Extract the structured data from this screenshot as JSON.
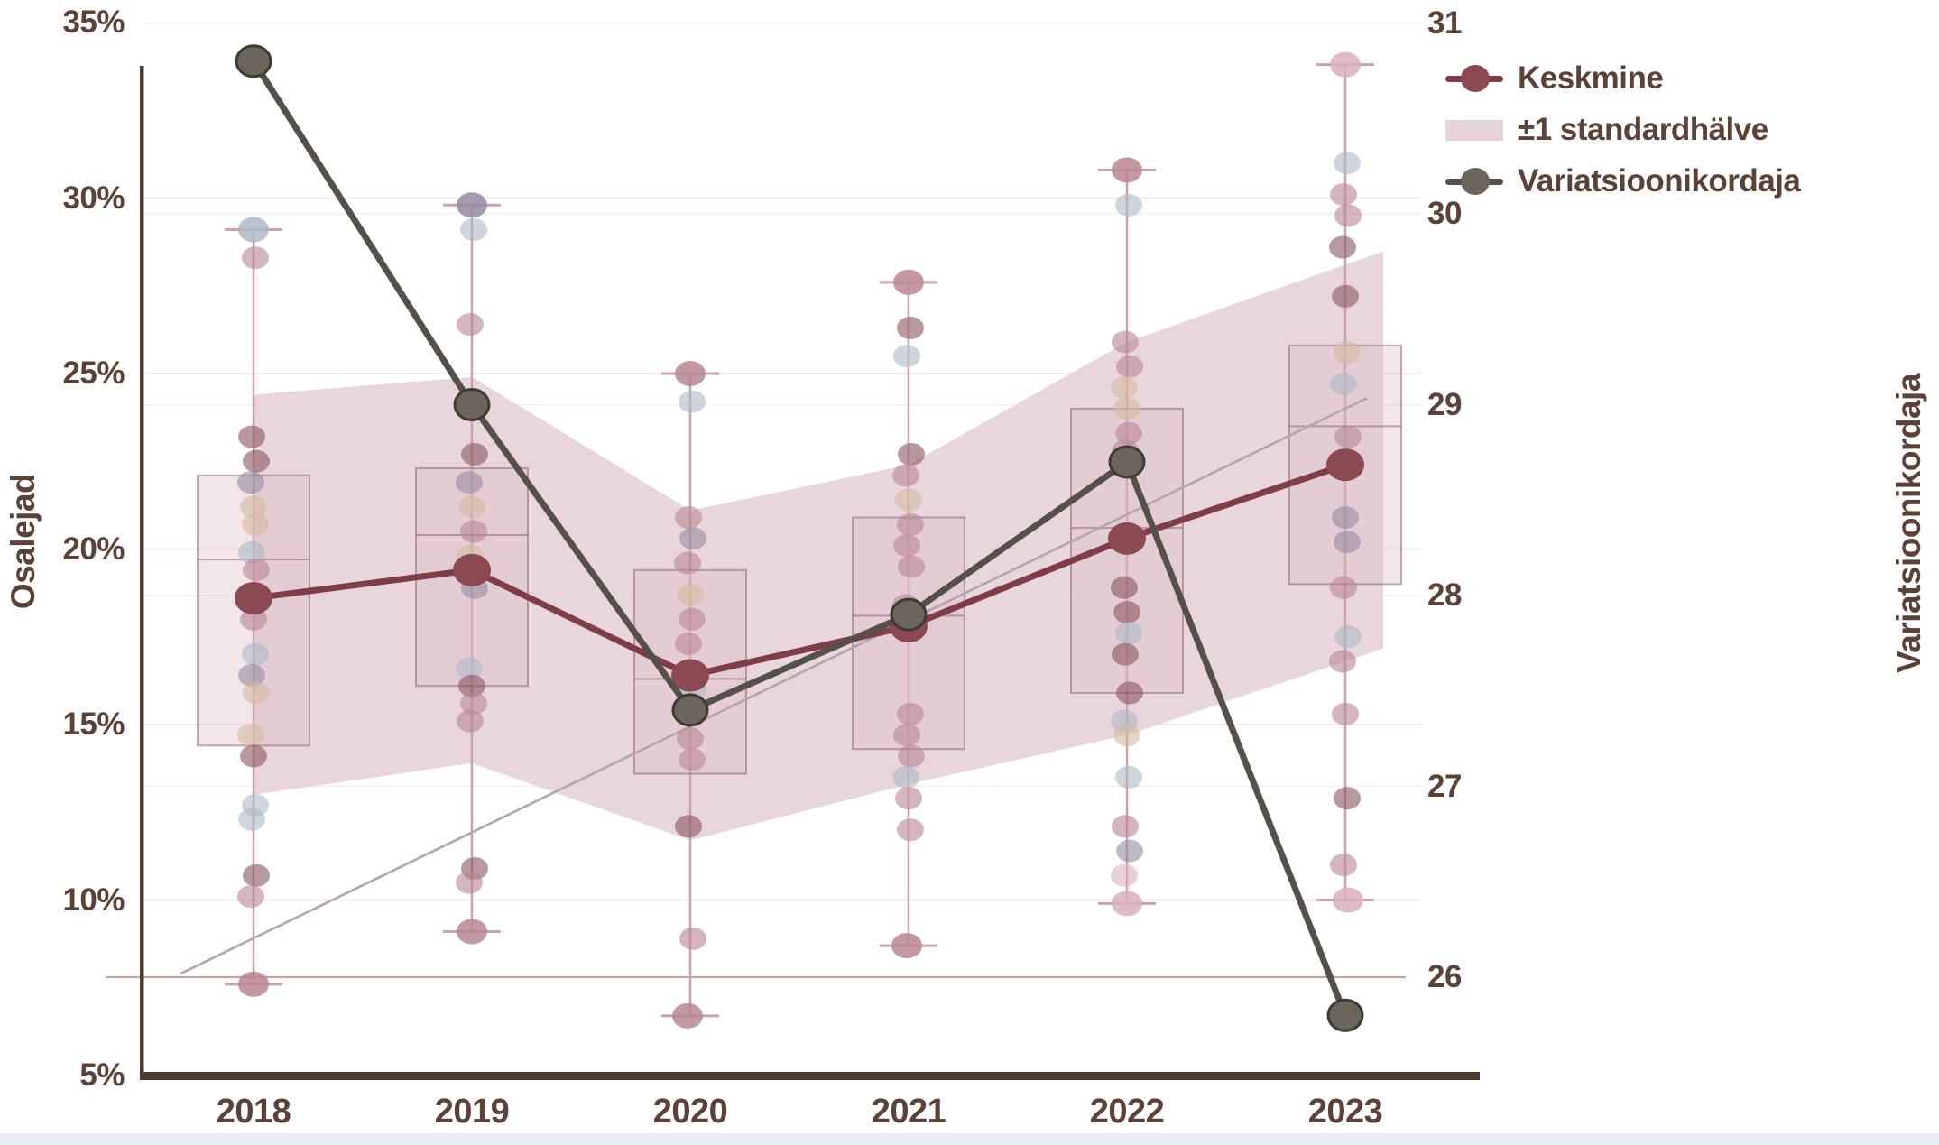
{
  "colors": {
    "text": "#5c4137",
    "axis_line": "#503b32",
    "mean_line": "#7f3e47",
    "mean_dot": "#8b4952",
    "cv_line": "#55504a",
    "cv_dot": "#6b655b",
    "cv_dot_ring": "#3e3a34",
    "band_fill": "#e7d2d9",
    "box_fill": "rgba(222,190,199,0.38)",
    "box_stroke": "rgba(130,90,100,0.5)",
    "whisker": "#c9a2ad",
    "trend_line": "#b3a4ad",
    "grid_left": "#f3e7ea",
    "grid_right": "#ece7e8",
    "grid_26": "#c5a49b",
    "bottom_strip": "#eaedf2",
    "dot_palette": {
      "rose": "#b98692",
      "maroon": "#8a5560",
      "blue": "#aeb9c6",
      "tan": "#d2bb9e",
      "purple": "#968aa0",
      "pink": "#d9afbe"
    }
  },
  "left_axis": {
    "title": "Osalejad",
    "ticks": [
      {
        "label": "35%",
        "value": 35
      },
      {
        "label": "30%",
        "value": 30
      },
      {
        "label": "25%",
        "value": 25
      },
      {
        "label": "20%",
        "value": 20
      },
      {
        "label": "15%",
        "value": 15
      },
      {
        "label": "10%",
        "value": 10
      },
      {
        "label": "5%",
        "value": 5
      }
    ]
  },
  "right_axis": {
    "title": "Variatsioonikordaja",
    "ticks": [
      {
        "label": "31",
        "value": 31
      },
      {
        "label": "30",
        "value": 30
      },
      {
        "label": "29",
        "value": 29
      },
      {
        "label": "28",
        "value": 28
      },
      {
        "label": "27",
        "value": 27
      },
      {
        "label": "26",
        "value": 26
      }
    ]
  },
  "x_axis": {
    "categories": [
      "2018",
      "2019",
      "2020",
      "2021",
      "2022",
      "2023"
    ]
  },
  "legend": {
    "items": [
      {
        "label": "Keskmine",
        "marker": "line-dot",
        "series": "mean"
      },
      {
        "label": "±1 standardhälve",
        "marker": "band",
        "series": "band"
      },
      {
        "label": "Variatsioonikordaja",
        "marker": "line-dot",
        "series": "cv"
      }
    ]
  },
  "chart_data": {
    "type": "mixed",
    "subtype": "boxplot + jitter points + mean line + std band + secondary-axis line",
    "categories": [
      2018,
      2019,
      2020,
      2021,
      2022,
      2023
    ],
    "left_ylim": [
      5,
      35
    ],
    "left_unit": "%",
    "right_ylim": [
      26,
      31
    ],
    "grid": {
      "left_values": [
        30,
        25,
        20,
        15,
        10
      ],
      "right_faint_values": [
        31,
        30,
        29,
        28,
        27
      ],
      "right_strong_value": 26
    },
    "series": [
      {
        "name": "Keskmine",
        "axis": "left",
        "type": "line",
        "values": [
          18.6,
          19.4,
          16.4,
          17.8,
          20.3,
          22.4
        ]
      },
      {
        "name": "±1 standardhälve",
        "axis": "left",
        "type": "band",
        "upper": [
          24.4,
          24.9,
          21.1,
          22.4,
          25.9,
          28.1
        ],
        "lower": [
          13.0,
          13.9,
          11.7,
          13.3,
          14.7,
          16.8
        ]
      },
      {
        "name": "Variatsioonikordaja",
        "axis": "right",
        "type": "line",
        "values": [
          30.8,
          29.0,
          27.4,
          27.9,
          28.7,
          25.8
        ]
      },
      {
        "name": "trend",
        "axis": "left",
        "type": "straight-line",
        "from_value": 7.9,
        "to_value": 24.3
      }
    ],
    "boxplots": [
      {
        "year": 2018,
        "whisker_low": 7.6,
        "q1": 14.4,
        "median": 19.7,
        "q3": 22.1,
        "whisker_high": 29.1
      },
      {
        "year": 2019,
        "whisker_low": 9.1,
        "q1": 16.1,
        "median": 20.4,
        "q3": 22.3,
        "whisker_high": 29.8
      },
      {
        "year": 2020,
        "whisker_low": 6.7,
        "q1": 13.6,
        "median": 16.3,
        "q3": 19.4,
        "whisker_high": 25.0
      },
      {
        "year": 2021,
        "whisker_low": 8.7,
        "q1": 14.3,
        "median": 18.1,
        "q3": 20.9,
        "whisker_high": 27.6
      },
      {
        "year": 2022,
        "whisker_low": 9.9,
        "q1": 15.9,
        "median": 20.6,
        "q3": 24.0,
        "whisker_high": 30.8
      },
      {
        "year": 2023,
        "whisker_low": 10.0,
        "q1": 19.0,
        "median": 23.5,
        "q3": 25.8,
        "whisker_high": 33.8
      }
    ],
    "points": [
      {
        "year": 2018,
        "values": [
          [
            29.1,
            "blue"
          ],
          [
            28.3,
            "rose"
          ],
          [
            23.2,
            "maroon"
          ],
          [
            22.5,
            "maroon"
          ],
          [
            21.9,
            "purple"
          ],
          [
            21.2,
            "tan"
          ],
          [
            20.7,
            "tan"
          ],
          [
            19.9,
            "blue"
          ],
          [
            19.4,
            "rose"
          ],
          [
            18.6,
            "pink"
          ],
          [
            18.0,
            "rose"
          ],
          [
            17.0,
            "blue"
          ],
          [
            16.4,
            "purple"
          ],
          [
            15.9,
            "tan"
          ],
          [
            14.7,
            "tan"
          ],
          [
            14.1,
            "maroon"
          ],
          [
            12.7,
            "blue"
          ],
          [
            12.3,
            "blue"
          ],
          [
            10.7,
            "maroon"
          ],
          [
            10.1,
            "rose"
          ],
          [
            7.6,
            "rose"
          ]
        ]
      },
      {
        "year": 2019,
        "values": [
          [
            29.8,
            "purple"
          ],
          [
            29.1,
            "blue"
          ],
          [
            26.4,
            "rose"
          ],
          [
            22.7,
            "maroon"
          ],
          [
            21.9,
            "purple"
          ],
          [
            21.2,
            "tan"
          ],
          [
            20.5,
            "rose"
          ],
          [
            19.8,
            "tan"
          ],
          [
            18.9,
            "purple"
          ],
          [
            16.6,
            "blue"
          ],
          [
            16.1,
            "maroon"
          ],
          [
            15.6,
            "rose"
          ],
          [
            15.1,
            "rose"
          ],
          [
            10.9,
            "maroon"
          ],
          [
            10.5,
            "rose"
          ],
          [
            9.1,
            "rose"
          ]
        ]
      },
      {
        "year": 2020,
        "values": [
          [
            25.0,
            "rose"
          ],
          [
            24.2,
            "blue"
          ],
          [
            20.9,
            "rose"
          ],
          [
            20.3,
            "purple"
          ],
          [
            19.6,
            "rose"
          ],
          [
            18.7,
            "tan"
          ],
          [
            18.0,
            "rose"
          ],
          [
            17.3,
            "rose"
          ],
          [
            16.0,
            "blue"
          ],
          [
            15.3,
            "rose"
          ],
          [
            14.6,
            "rose"
          ],
          [
            14.0,
            "rose"
          ],
          [
            12.1,
            "maroon"
          ],
          [
            8.9,
            "rose"
          ],
          [
            6.7,
            "rose"
          ]
        ]
      },
      {
        "year": 2021,
        "values": [
          [
            27.6,
            "rose"
          ],
          [
            26.3,
            "maroon"
          ],
          [
            25.5,
            "blue"
          ],
          [
            22.7,
            "maroon"
          ],
          [
            22.1,
            "rose"
          ],
          [
            21.4,
            "tan"
          ],
          [
            20.7,
            "rose"
          ],
          [
            20.1,
            "rose"
          ],
          [
            19.5,
            "rose"
          ],
          [
            18.4,
            "rose"
          ],
          [
            17.7,
            "rose"
          ],
          [
            15.3,
            "rose"
          ],
          [
            14.7,
            "rose"
          ],
          [
            14.1,
            "rose"
          ],
          [
            13.5,
            "blue"
          ],
          [
            12.9,
            "rose"
          ],
          [
            12.0,
            "rose"
          ],
          [
            8.7,
            "rose"
          ]
        ]
      },
      {
        "year": 2022,
        "values": [
          [
            30.8,
            "rose"
          ],
          [
            29.8,
            "blue"
          ],
          [
            25.9,
            "rose"
          ],
          [
            25.2,
            "rose"
          ],
          [
            24.6,
            "tan"
          ],
          [
            24.0,
            "tan"
          ],
          [
            23.3,
            "rose"
          ],
          [
            22.8,
            "rose"
          ],
          [
            20.3,
            "rose"
          ],
          [
            18.9,
            "maroon"
          ],
          [
            18.2,
            "maroon"
          ],
          [
            17.6,
            "blue"
          ],
          [
            17.0,
            "maroon"
          ],
          [
            15.9,
            "maroon"
          ],
          [
            15.1,
            "blue"
          ],
          [
            14.7,
            "tan"
          ],
          [
            13.5,
            "blue"
          ],
          [
            12.1,
            "rose"
          ],
          [
            11.4,
            "purple"
          ],
          [
            10.7,
            "pink"
          ],
          [
            9.9,
            "pink"
          ]
        ]
      },
      {
        "year": 2023,
        "values": [
          [
            33.8,
            "pink"
          ],
          [
            31.0,
            "blue"
          ],
          [
            30.1,
            "rose"
          ],
          [
            29.5,
            "rose"
          ],
          [
            28.6,
            "maroon"
          ],
          [
            27.2,
            "maroon"
          ],
          [
            25.6,
            "tan"
          ],
          [
            24.7,
            "blue"
          ],
          [
            23.2,
            "rose"
          ],
          [
            22.4,
            "rose"
          ],
          [
            20.9,
            "purple"
          ],
          [
            20.2,
            "purple"
          ],
          [
            18.9,
            "rose"
          ],
          [
            17.5,
            "blue"
          ],
          [
            16.8,
            "rose"
          ],
          [
            15.3,
            "rose"
          ],
          [
            12.9,
            "maroon"
          ],
          [
            11.0,
            "rose"
          ],
          [
            10.0,
            "pink"
          ]
        ]
      }
    ]
  }
}
